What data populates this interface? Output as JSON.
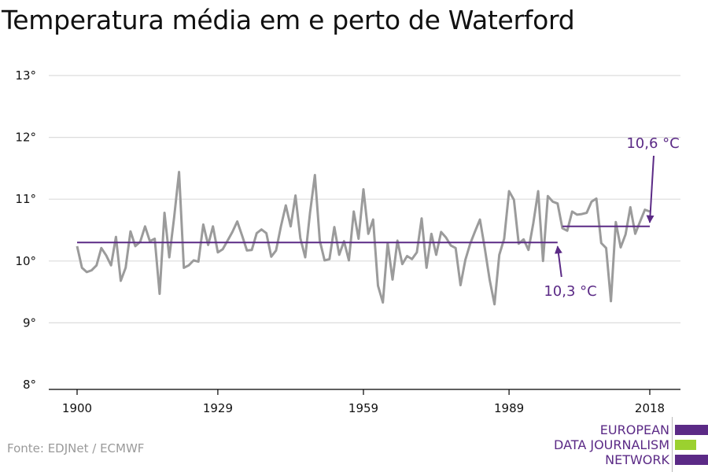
{
  "title": "Temperatura média em e perto de Waterford",
  "source": "Fonte: EDJNet / ECMWF",
  "logo": {
    "lines": [
      "EUROPEAN",
      "DATA JOURNALISM",
      "NETWORK"
    ],
    "colors": {
      "purple": "#5b2a86",
      "green": "#9bd12f"
    }
  },
  "colors": {
    "series": "#9b9b9b",
    "average": "#5b2a86",
    "grid": "#dcdcdc",
    "axis": "#000000"
  },
  "chart_data": {
    "type": "line",
    "title": "Temperatura média em e perto de Waterford",
    "xlabel": "",
    "ylabel": "",
    "xlim": [
      1900,
      2018
    ],
    "ylim": [
      8,
      13
    ],
    "grid": true,
    "x_ticks": [
      1900,
      1929,
      1959,
      1989,
      2018
    ],
    "x_tick_labels": [
      "1900",
      "1929",
      "1959",
      "1989",
      "2018"
    ],
    "y_ticks": [
      8,
      9,
      10,
      11,
      12,
      13
    ],
    "y_tick_labels": [
      "8°",
      "9°",
      "10°",
      "11°",
      "12°",
      "13°"
    ],
    "series": [
      {
        "x": [
          1900,
          1901,
          1902,
          1903,
          1904,
          1905,
          1906,
          1907,
          1908,
          1909,
          1910,
          1911,
          1912,
          1913,
          1914,
          1915,
          1916,
          1917,
          1918,
          1919,
          1920,
          1921,
          1922,
          1923,
          1924,
          1925,
          1926,
          1927,
          1928,
          1929,
          1930,
          1931,
          1932,
          1933,
          1934,
          1935,
          1936,
          1937,
          1938,
          1939,
          1940,
          1941,
          1942,
          1943,
          1944,
          1945,
          1946,
          1947,
          1948,
          1949,
          1950,
          1951,
          1952,
          1953,
          1954,
          1955,
          1956,
          1957,
          1958,
          1959,
          1960,
          1961,
          1962,
          1963,
          1964,
          1965,
          1966,
          1967,
          1968,
          1969,
          1970,
          1971,
          1972,
          1973,
          1974,
          1975,
          1976,
          1977,
          1978,
          1979,
          1980,
          1981,
          1982,
          1983,
          1984,
          1985,
          1986,
          1987,
          1988,
          1989,
          1990,
          1991,
          1992,
          1993,
          1994,
          1995,
          1996,
          1997,
          1998,
          1999,
          2000,
          2001,
          2002,
          2003,
          2004,
          2005,
          2006,
          2007,
          2008,
          2009,
          2010,
          2011,
          2012,
          2013,
          2014,
          2015,
          2016,
          2017,
          2018
        ],
        "values": [
          10.24,
          9.89,
          9.82,
          9.85,
          9.93,
          10.21,
          10.09,
          9.93,
          10.39,
          9.68,
          9.89,
          10.48,
          10.24,
          10.31,
          10.56,
          10.32,
          10.36,
          9.47,
          10.78,
          10.06,
          10.71,
          11.44,
          9.89,
          9.93,
          10.01,
          9.99,
          10.59,
          10.26,
          10.56,
          10.14,
          10.19,
          10.33,
          10.47,
          10.64,
          10.41,
          10.17,
          10.18,
          10.45,
          10.51,
          10.45,
          10.07,
          10.17,
          10.56,
          10.9,
          10.56,
          11.06,
          10.37,
          10.06,
          10.78,
          11.39,
          10.33,
          10.01,
          10.03,
          10.55,
          10.1,
          10.32,
          10.01,
          10.8,
          10.36,
          11.16,
          10.44,
          10.67,
          9.6,
          9.33,
          10.29,
          9.7,
          10.33,
          9.95,
          10.08,
          10.03,
          10.14,
          10.69,
          9.89,
          10.44,
          10.1,
          10.47,
          10.38,
          10.25,
          10.21,
          9.61,
          10.02,
          10.28,
          10.48,
          10.67,
          10.21,
          9.7,
          9.3,
          10.1,
          10.36,
          11.13,
          10.99,
          10.28,
          10.35,
          10.18,
          10.61,
          11.13,
          10,
          11.05,
          10.96,
          10.93,
          10.53,
          10.49,
          10.8,
          10.75,
          10.76,
          10.78,
          10.96,
          11.01,
          10.29,
          10.21,
          9.35,
          10.63,
          10.22,
          10.43,
          10.87,
          10.44,
          10.64,
          10.83,
          10.8
        ]
      }
    ],
    "averages": [
      {
        "label": "10,3 °C",
        "value": 10.3,
        "x_start": 1900,
        "x_end": 1999
      },
      {
        "label": "10,6 °C",
        "value": 10.56,
        "x_start": 2000,
        "x_end": 2018
      }
    ]
  }
}
